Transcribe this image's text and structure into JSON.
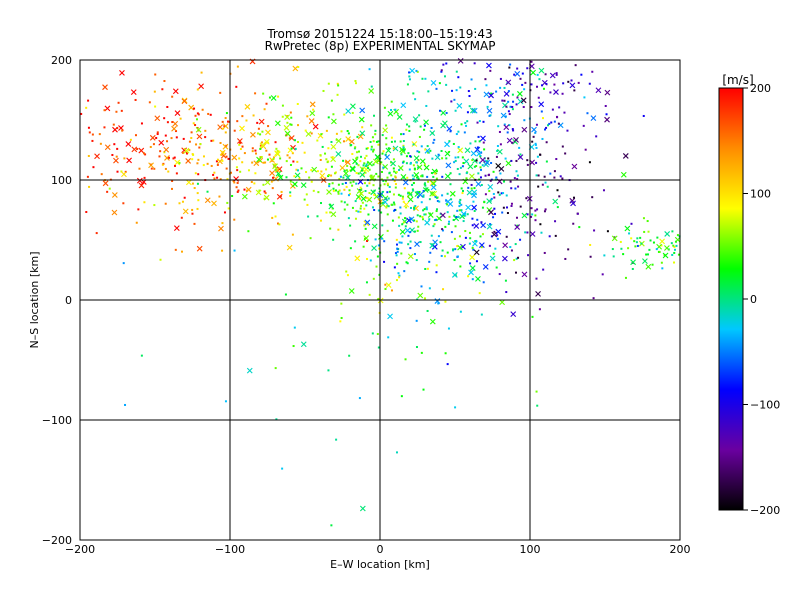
{
  "chart_data": {
    "type": "scatter",
    "title_line1": "Tromsø 20151224 15:18:00–15:19:43",
    "title_line2": "RwPretec (8p) EXPERIMENTAL SKYMAP",
    "xlabel": "E–W location [km]",
    "ylabel": "N–S location [km]",
    "xlim": [
      -200,
      200
    ],
    "ylim": [
      -200,
      200
    ],
    "xticks": [
      "−200",
      "−100",
      "0",
      "100",
      "200"
    ],
    "yticks": [
      "−200",
      "−100",
      "0",
      "100",
      "200"
    ],
    "grid": true,
    "colorbar": {
      "label": "[m/s]",
      "range": [
        -200,
        200
      ],
      "ticks": [
        "200",
        "100",
        "0",
        "−100",
        "−200"
      ],
      "colors": [
        "#000000",
        "#6a00a0",
        "#0000ff",
        "#00c8ff",
        "#00ff00",
        "#ffff00",
        "#ff8c00",
        "#ff0000"
      ]
    },
    "markers": [
      "dot",
      "x"
    ],
    "clusters": [
      {
        "x": -140,
        "y": 125,
        "spread": [
          40,
          30
        ],
        "velocity": 175,
        "count": 200
      },
      {
        "x": -90,
        "y": 115,
        "spread": [
          40,
          30
        ],
        "velocity": 120,
        "count": 160
      },
      {
        "x": -40,
        "y": 120,
        "spread": [
          35,
          30
        ],
        "velocity": 60,
        "count": 180
      },
      {
        "x": 0,
        "y": 100,
        "spread": [
          25,
          25
        ],
        "velocity": 40,
        "count": 220
      },
      {
        "x": 35,
        "y": 95,
        "spread": [
          30,
          25
        ],
        "velocity": 5,
        "count": 240
      },
      {
        "x": 40,
        "y": 60,
        "spread": [
          30,
          30
        ],
        "velocity": -40,
        "count": 160
      },
      {
        "x": 60,
        "y": 160,
        "spread": [
          35,
          30
        ],
        "velocity": -30,
        "count": 150
      },
      {
        "x": 100,
        "y": 170,
        "spread": [
          30,
          25
        ],
        "velocity": -120,
        "count": 100
      },
      {
        "x": 100,
        "y": 90,
        "spread": [
          30,
          40
        ],
        "velocity": -150,
        "count": 130
      },
      {
        "x": 190,
        "y": 45,
        "spread": [
          20,
          10
        ],
        "velocity": 30,
        "count": 90
      },
      {
        "x": 20,
        "y": 20,
        "spread": [
          30,
          25
        ],
        "velocity": 60,
        "count": 60
      },
      {
        "x": 0,
        "y": -20,
        "spread": [
          90,
          80
        ],
        "velocity": 0,
        "count": 40
      }
    ]
  }
}
